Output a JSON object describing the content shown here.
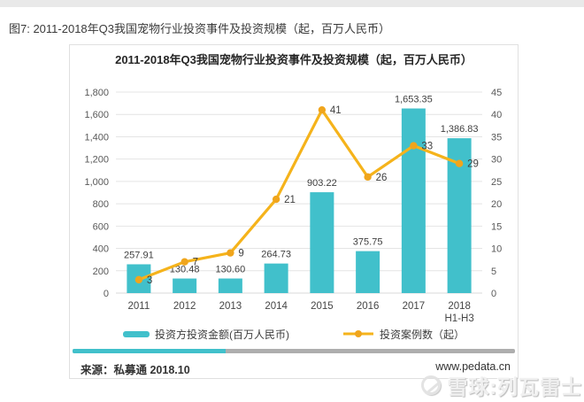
{
  "page": {
    "caption": "图7: 2011-2018年Q3我国宠物行业投资事件及投资规模（起，百万人民币）",
    "watermark": {
      "logo": "xueqiu-snowball",
      "text": "雪球:列瓦雷士"
    }
  },
  "panel": {
    "source": "来源：私募通  2018.10",
    "website": "www.pedata.cn"
  },
  "colors": {
    "bar_teal": "#41C0CB",
    "line_gold": "#F5B31B",
    "marker_gold": "#F0A51C",
    "grid": "#E4E4E4",
    "divider_gray": "#AEAEAE"
  },
  "chart_data": {
    "type": "bar",
    "subtype": "combo-bar-line-dual-axis",
    "title": "2011-2018年Q3我国宠物行业投资事件及投资规模（起，百万人民币）",
    "categories": [
      "2011",
      "2012",
      "2013",
      "2014",
      "2015",
      "2016",
      "2017",
      "2018\nH1-H3"
    ],
    "series": [
      {
        "name": "投资方投资金额(百万人民币)",
        "type": "bar",
        "axis": "left",
        "color": "#41C0CB",
        "values": [
          257.91,
          130.48,
          130.6,
          264.73,
          903.22,
          375.75,
          1653.35,
          1386.83
        ],
        "labels": [
          "257.91",
          "130.48",
          "130.60",
          "264.73",
          "903.22",
          "375.75",
          "1,653.35",
          "1,386.83"
        ]
      },
      {
        "name": "投资案例数（起）",
        "type": "line",
        "axis": "right",
        "color": "#F5B31B",
        "marker_color": "#F0A51C",
        "values": [
          3,
          7,
          9,
          21,
          41,
          26,
          33,
          29
        ],
        "labels": [
          "3",
          "7",
          "9",
          "21",
          "41",
          "26",
          "33",
          "29"
        ]
      }
    ],
    "left_axis": {
      "min": 0,
      "max": 1800,
      "step": 200,
      "ticks": [
        "0",
        "200",
        "400",
        "600",
        "800",
        "1,000",
        "1,200",
        "1,400",
        "1,600",
        "1,800"
      ]
    },
    "right_axis": {
      "min": 0,
      "max": 45,
      "step": 5,
      "ticks": [
        "0",
        "5",
        "10",
        "15",
        "20",
        "25",
        "30",
        "35",
        "40",
        "45"
      ]
    },
    "grid": true,
    "legend_position": "bottom"
  }
}
